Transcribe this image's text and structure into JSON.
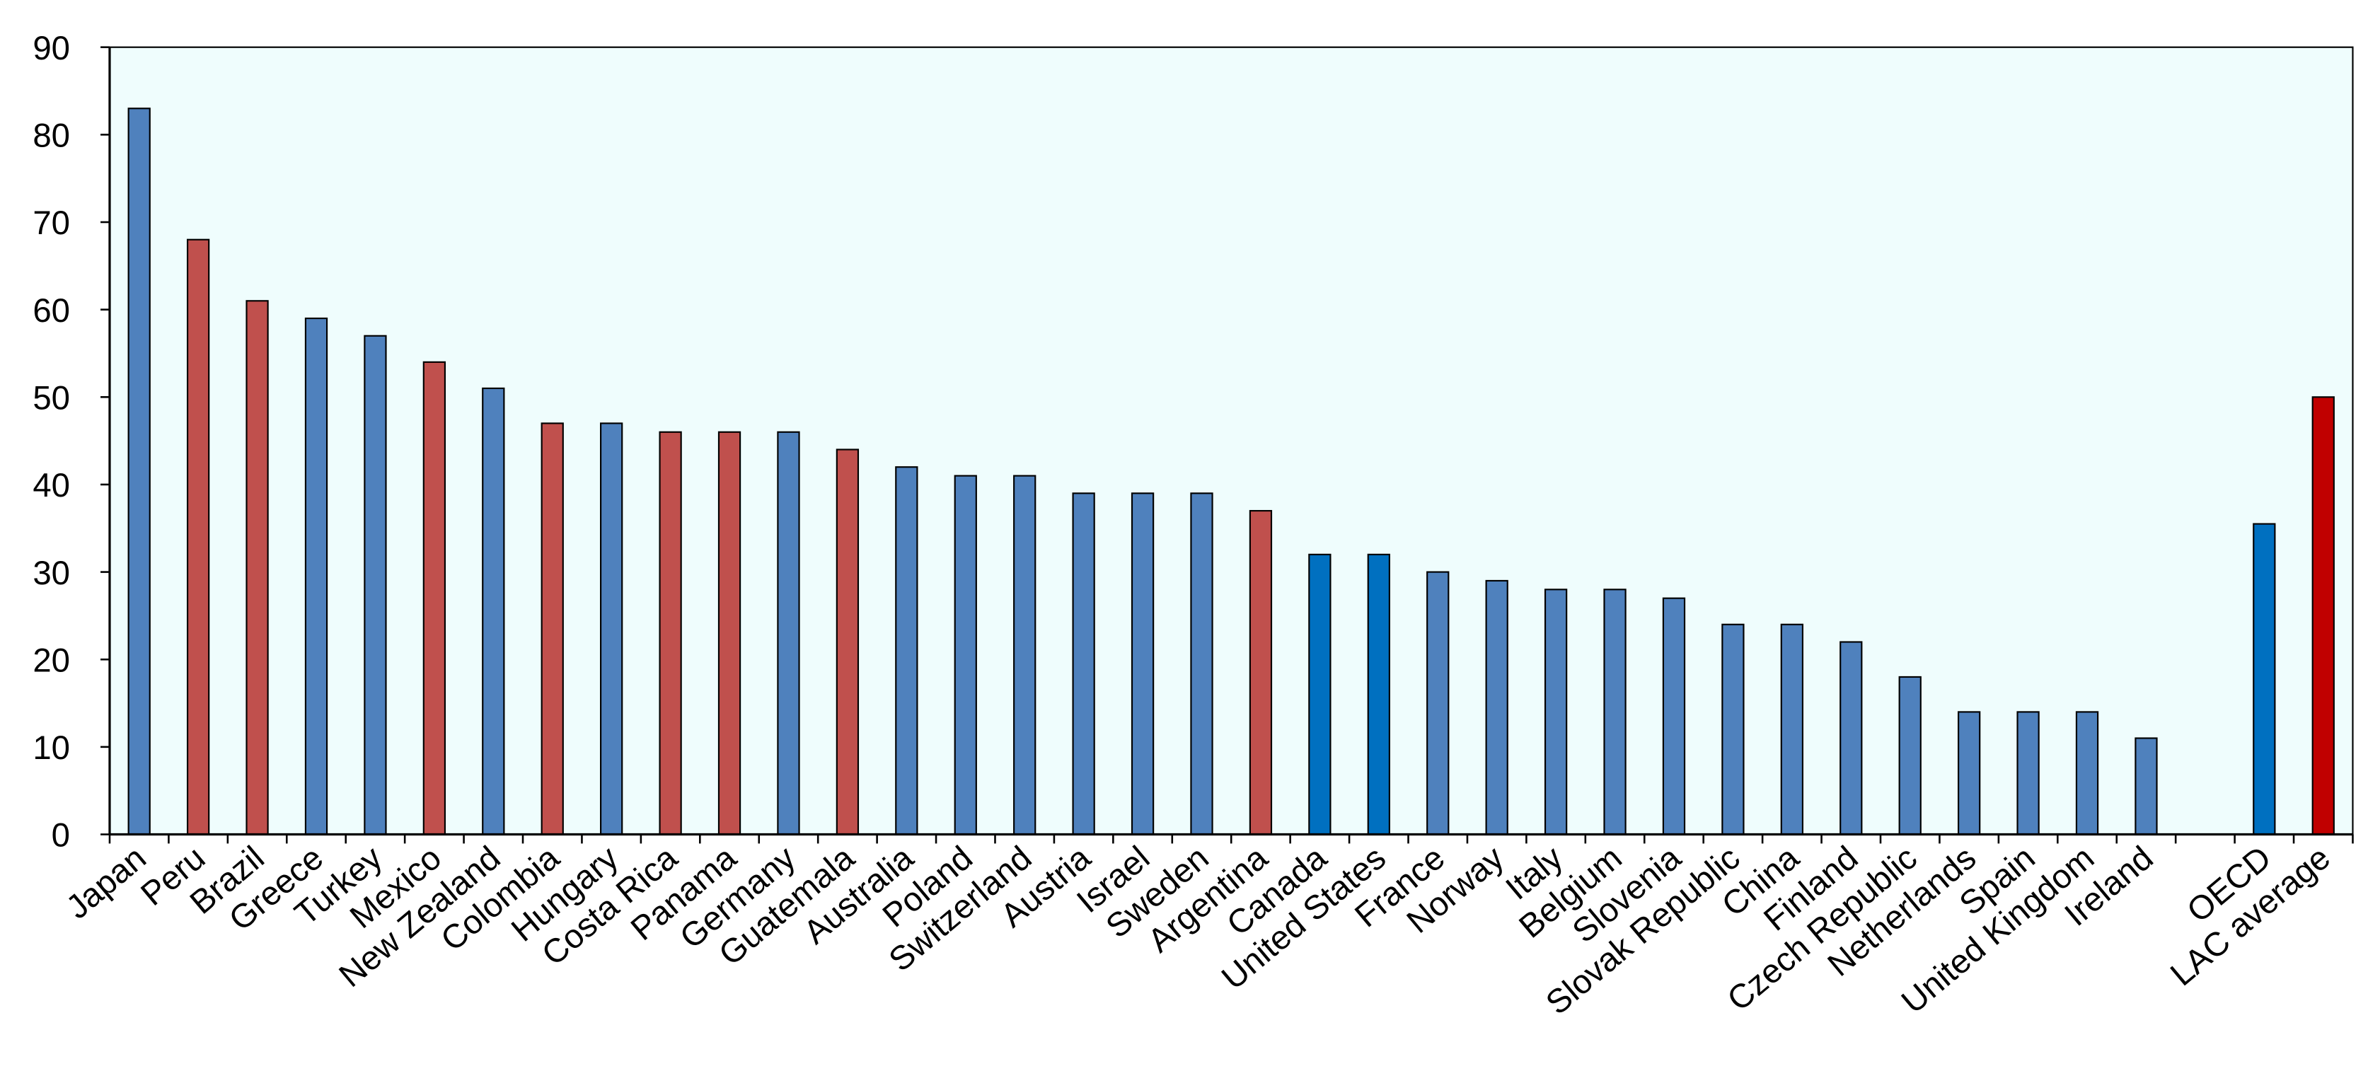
{
  "chart_data": {
    "type": "bar",
    "categories": [
      "Japan",
      "Peru",
      "Brazil",
      "Greece",
      "Turkey",
      "Mexico",
      "New Zealand",
      "Colombia",
      "Hungary",
      "Costa Rica",
      "Panama",
      "Germany",
      "Guatemala",
      "Australia",
      "Poland",
      "Switzerland",
      "Austria",
      "Israel",
      "Sweden",
      "Argentina",
      "Canada",
      "United States",
      "France",
      "Norway",
      "Italy",
      "Belgium",
      "Slovenia",
      "Slovak Republic",
      "China",
      "Finland",
      "Czech Republic",
      "Netherlands",
      "Spain",
      "United Kingdom",
      "Ireland",
      null,
      "OECD",
      "LAC average"
    ],
    "values": [
      83,
      68,
      61,
      59,
      57,
      54,
      51,
      47,
      47,
      46,
      46,
      46,
      44,
      42,
      41,
      41,
      39,
      39,
      39,
      37,
      32,
      32,
      30,
      29,
      28,
      28,
      27,
      24,
      24,
      22,
      18,
      14,
      14,
      14,
      11,
      null,
      35.5,
      50
    ],
    "colors": [
      "#4f81bd",
      "#c0504d",
      "#c0504d",
      "#4f81bd",
      "#4f81bd",
      "#c0504d",
      "#4f81bd",
      "#c0504d",
      "#4f81bd",
      "#c0504d",
      "#c0504d",
      "#4f81bd",
      "#c0504d",
      "#4f81bd",
      "#4f81bd",
      "#4f81bd",
      "#4f81bd",
      "#4f81bd",
      "#4f81bd",
      "#c0504d",
      "#0070c0",
      "#0070c0",
      "#4f81bd",
      "#4f81bd",
      "#4f81bd",
      "#4f81bd",
      "#4f81bd",
      "#4f81bd",
      "#4f81bd",
      "#4f81bd",
      "#4f81bd",
      "#4f81bd",
      "#4f81bd",
      "#4f81bd",
      "#4f81bd",
      null,
      "#0070c0",
      "#c00000"
    ],
    "ylim": [
      0,
      90
    ],
    "yticks": [
      0,
      10,
      20,
      30,
      40,
      50,
      60,
      70,
      80,
      90
    ]
  }
}
